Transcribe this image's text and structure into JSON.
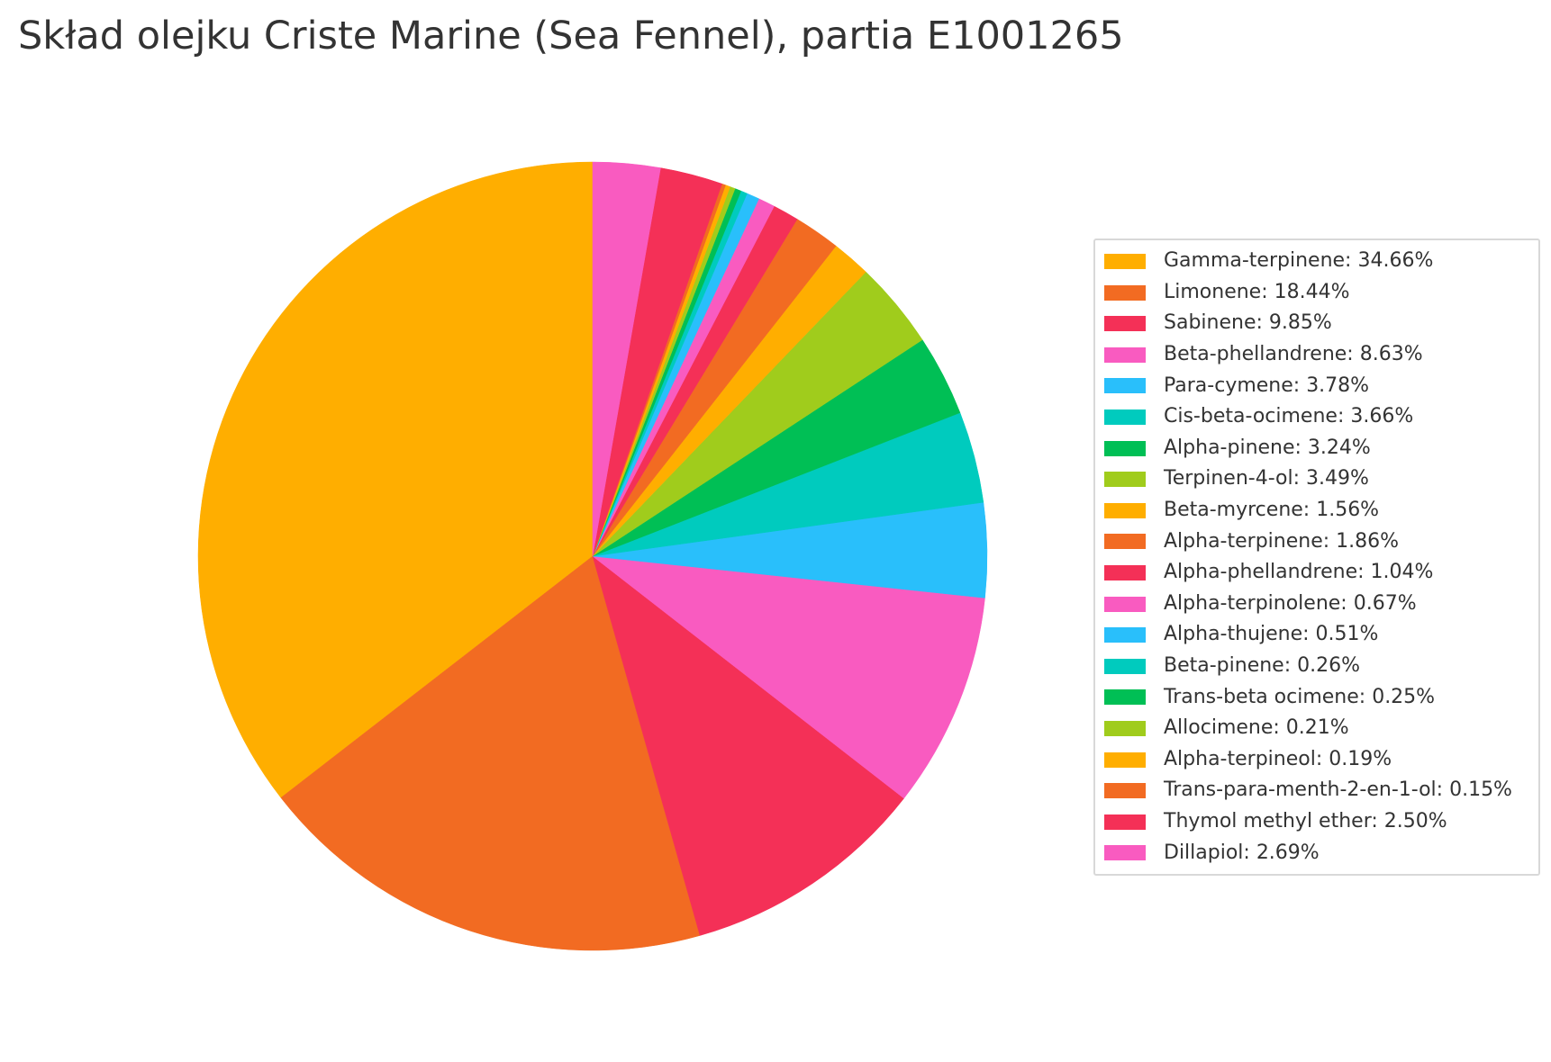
{
  "chart_data": {
    "type": "pie",
    "title": "Skład olejku Criste Marine (Sea Fennel), partia E1001265",
    "start_angle": "top, counter-clockwise",
    "legend_position": "right",
    "slices": [
      {
        "label": "Gamma-terpinene: 34.66%",
        "name": "Gamma-terpinene",
        "value": 34.66,
        "color": "#FFAE00"
      },
      {
        "label": "Limonene: 18.44%",
        "name": "Limonene",
        "value": 18.44,
        "color": "#F26B22"
      },
      {
        "label": "Sabinene: 9.85%",
        "name": "Sabinene",
        "value": 9.85,
        "color": "#F43057"
      },
      {
        "label": "Beta-phellandrene: 8.63%",
        "name": "Beta-phellandrene",
        "value": 8.63,
        "color": "#F95BC0"
      },
      {
        "label": "Para-cymene: 3.78%",
        "name": "Para-cymene",
        "value": 3.78,
        "color": "#29BFFB"
      },
      {
        "label": "Cis-beta-ocimene: 3.66%",
        "name": "Cis-beta-ocimene",
        "value": 3.66,
        "color": "#00CBBE"
      },
      {
        "label": "Alpha-pinene: 3.24%",
        "name": "Alpha-pinene",
        "value": 3.24,
        "color": "#00BF55"
      },
      {
        "label": "Terpinen-4-ol: 3.49%",
        "name": "Terpinen-4-ol",
        "value": 3.49,
        "color": "#A0CC1C"
      },
      {
        "label": "Beta-myrcene: 1.56%",
        "name": "Beta-myrcene",
        "value": 1.56,
        "color": "#FFAE00"
      },
      {
        "label": "Alpha-terpinene: 1.86%",
        "name": "Alpha-terpinene",
        "value": 1.86,
        "color": "#F26B22"
      },
      {
        "label": "Alpha-phellandrene: 1.04%",
        "name": "Alpha-phellandrene",
        "value": 1.04,
        "color": "#F43057"
      },
      {
        "label": "Alpha-terpinolene: 0.67%",
        "name": "Alpha-terpinolene",
        "value": 0.67,
        "color": "#F95BC0"
      },
      {
        "label": "Alpha-thujene: 0.51%",
        "name": "Alpha-thujene",
        "value": 0.51,
        "color": "#29BFFB"
      },
      {
        "label": "Beta-pinene: 0.26%",
        "name": "Beta-pinene",
        "value": 0.26,
        "color": "#00CBBE"
      },
      {
        "label": "Trans-beta ocimene: 0.25%",
        "name": "Trans-beta ocimene",
        "value": 0.25,
        "color": "#00BF55"
      },
      {
        "label": "Allocimene: 0.21%",
        "name": "Allocimene",
        "value": 0.21,
        "color": "#A0CC1C"
      },
      {
        "label": "Alpha-terpineol: 0.19%",
        "name": "Alpha-terpineol",
        "value": 0.19,
        "color": "#FFAE00"
      },
      {
        "label": "Trans-para-menth-2-en-1-ol: 0.15%",
        "name": "Trans-para-menth-2-en-1-ol",
        "value": 0.15,
        "color": "#F26B22"
      },
      {
        "label": "Thymol methyl ether: 2.50%",
        "name": "Thymol methyl ether",
        "value": 2.5,
        "color": "#F43057"
      },
      {
        "label": "Dillapiol: 2.69%",
        "name": "Dillapiol",
        "value": 2.69,
        "color": "#F95BC0"
      }
    ]
  }
}
